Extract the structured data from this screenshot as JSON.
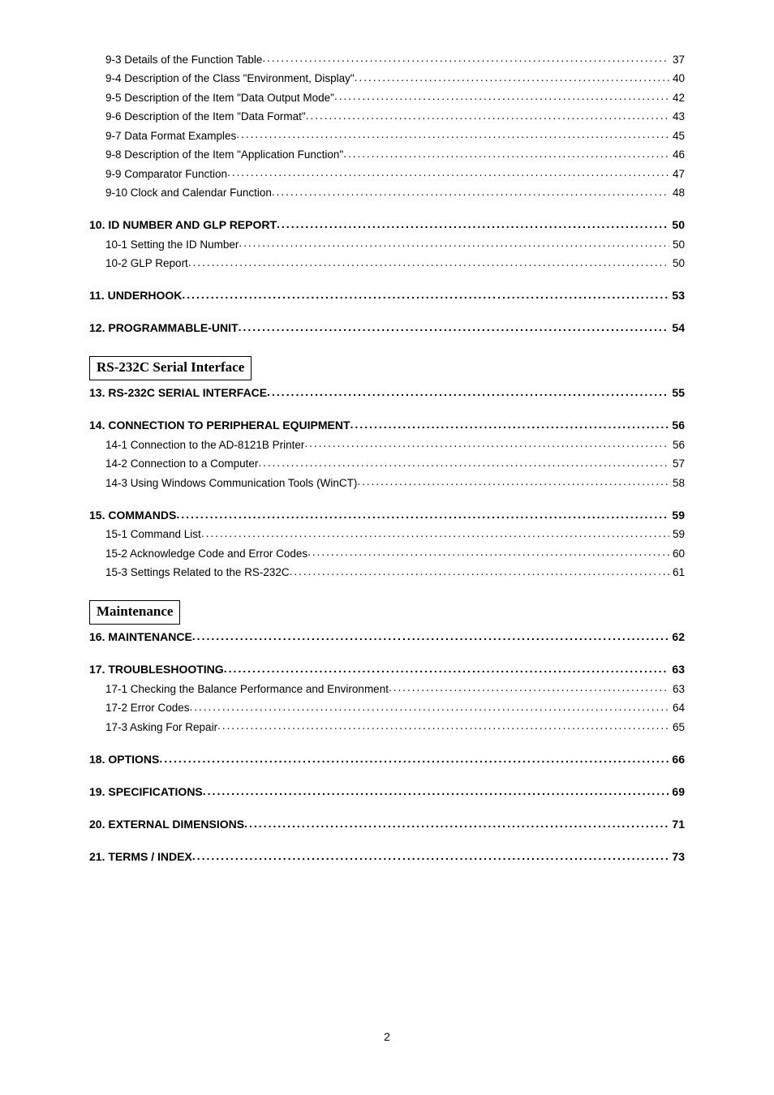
{
  "toc": {
    "group1_subs": [
      {
        "title": "9-3 Details of the Function Table",
        "page": "37"
      },
      {
        "title": "9-4 Description of the Class \"Environment, Display\"",
        "page": "40"
      },
      {
        "title": "9-5 Description of the Item \"Data Output Mode\"",
        "page": "42"
      },
      {
        "title": "9-6 Description of the Item \"Data Format\"",
        "page": "43"
      },
      {
        "title": "9-7 Data Format Examples",
        "page": "45"
      },
      {
        "title": "9-8 Description of the Item \"Application Function\"",
        "page": "46"
      },
      {
        "title": "9-9 Comparator Function",
        "page": "47"
      },
      {
        "title": "9-10 Clock and Calendar Function",
        "page": "48"
      }
    ],
    "group2_head": {
      "title": "10. ID NUMBER AND GLP REPORT",
      "page": "50"
    },
    "group2_subs": [
      {
        "title": "10-1 Setting the ID Number",
        "page": "50"
      },
      {
        "title": "10-2 GLP Report",
        "page": "50"
      }
    ],
    "group3_head": {
      "title": "11. UNDERHOOK",
      "page": "53"
    },
    "group4_head": {
      "title": "12. PROGRAMMABLE-UNIT",
      "page": "54"
    },
    "section_rs232c_label": "RS-232C Serial Interface",
    "group5_head": {
      "title": "13. RS-232C SERIAL INTERFACE",
      "page": "55"
    },
    "group6_head": {
      "title": "14. CONNECTION TO PERIPHERAL EQUIPMENT",
      "page": "56"
    },
    "group6_subs": [
      {
        "title": "14-1 Connection to the AD-8121B Printer",
        "page": "56"
      },
      {
        "title": "14-2 Connection to a Computer",
        "page": "57"
      },
      {
        "title": "14-3 Using Windows Communication Tools (WinCT)",
        "page": "58"
      }
    ],
    "group7_head": {
      "title": "15. COMMANDS",
      "page": "59"
    },
    "group7_subs": [
      {
        "title": "15-1 Command List",
        "page": "59"
      },
      {
        "title": "15-2 Acknowledge Code and Error Codes",
        "page": "60"
      },
      {
        "title": "15-3 Settings Related to the RS-232C",
        "page": "61"
      }
    ],
    "section_maintenance_label": "Maintenance",
    "group8_head": {
      "title": "16. MAINTENANCE",
      "page": "62"
    },
    "group9_head": {
      "title": "17. TROUBLESHOOTING",
      "page": "63"
    },
    "group9_subs": [
      {
        "title": "17-1 Checking the Balance Performance and Environment",
        "page": "63"
      },
      {
        "title": "17-2 Error Codes",
        "page": "64"
      },
      {
        "title": "17-3 Asking For Repair",
        "page": "65"
      }
    ],
    "group10_head": {
      "title": "18. OPTIONS",
      "page": "66"
    },
    "group11_head": {
      "title": "19. SPECIFICATIONS",
      "page": "69"
    },
    "group12_head": {
      "title": "20. EXTERNAL DIMENSIONS",
      "page": "71"
    },
    "group13_head": {
      "title": "21. TERMS / INDEX",
      "page": "73"
    }
  },
  "page_number": "2"
}
